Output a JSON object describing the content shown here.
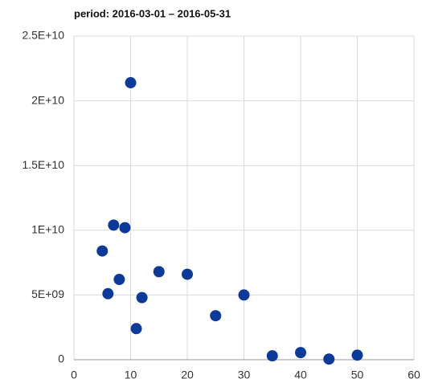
{
  "chart_data": {
    "type": "scatter",
    "title": "period: 2016-03-01 – 2016-05-31",
    "series": [
      {
        "color": "#0b3a9a",
        "x": [
          5,
          6,
          7,
          8,
          9,
          10,
          11,
          12,
          15,
          20,
          25,
          30,
          35,
          40,
          45,
          50
        ],
        "values": [
          8400000000,
          5100000000,
          10400000000,
          6200000000,
          10200000000,
          21400000000,
          2400000000,
          4800000000,
          6800000000,
          6600000000,
          3400000000,
          5000000000,
          300000000,
          550000000,
          50000000,
          350000000
        ]
      }
    ],
    "xlim": [
      0,
      60
    ],
    "xticks": [
      0,
      10,
      20,
      30,
      40,
      50,
      60
    ],
    "ylim": [
      0,
      25000000000
    ],
    "yticks": [
      0,
      {
        "value": 5000000000,
        "label": "5E+09"
      },
      {
        "value": 10000000000,
        "label": "1E+10"
      },
      {
        "value": 15000000000,
        "label": "1.5E+10"
      },
      {
        "value": 20000000000,
        "label": "2E+10"
      },
      {
        "value": 25000000000,
        "label": "2.5E+10"
      }
    ],
    "grid": true
  }
}
